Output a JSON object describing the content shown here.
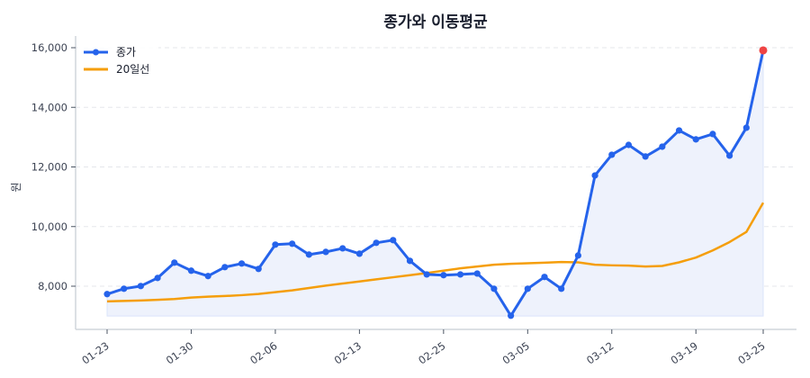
{
  "chart_data": {
    "type": "line",
    "title": "종가와 이동평균",
    "xlabel": "",
    "ylabel": "원",
    "ylim": [
      6600,
      16400
    ],
    "yticks": [
      8000,
      10000,
      12000,
      14000,
      16000
    ],
    "ytick_labels": [
      "8,000",
      "10,000",
      "12,000",
      "14,000",
      "16,000"
    ],
    "grid": true,
    "legend_position": "upper left",
    "xtick_labels": [
      "01-23",
      "01-30",
      "02-06",
      "02-13",
      "02-25",
      "03-05",
      "03-12",
      "03-19",
      "03-25"
    ],
    "xtick_indices": [
      0,
      5,
      10,
      15,
      20,
      25,
      30,
      35,
      39
    ],
    "fill_baseline": 7000,
    "colors": {
      "close": "#2563eb",
      "ma": "#f59e0b",
      "fill": "#eef2fc",
      "last_point": "#ef4444",
      "grid": "#e5e7eb",
      "axis": "#d1d5db"
    },
    "series": [
      {
        "name": "종가",
        "marker": true,
        "values": [
          7735,
          7915,
          8005,
          8275,
          8790,
          8520,
          8340,
          8640,
          8760,
          8580,
          9395,
          9425,
          9060,
          9150,
          9270,
          9090,
          9455,
          9545,
          8850,
          8395,
          8370,
          8395,
          8425,
          7915,
          7010,
          7915,
          8310,
          7915,
          9030,
          11715,
          12410,
          12740,
          12350,
          12680,
          13225,
          12925,
          13105,
          12380,
          13315,
          15910
        ]
      },
      {
        "name": "20일선",
        "marker": false,
        "values": [
          7490,
          7505,
          7520,
          7545,
          7570,
          7620,
          7650,
          7670,
          7700,
          7740,
          7800,
          7860,
          7940,
          8020,
          8090,
          8160,
          8230,
          8300,
          8370,
          8440,
          8520,
          8600,
          8660,
          8720,
          8750,
          8770,
          8790,
          8810,
          8800,
          8720,
          8700,
          8690,
          8660,
          8680,
          8800,
          8960,
          9200,
          9480,
          9820,
          10800
        ]
      }
    ]
  },
  "legend": {
    "items": [
      {
        "label": "종가"
      },
      {
        "label": "20일선"
      }
    ]
  }
}
